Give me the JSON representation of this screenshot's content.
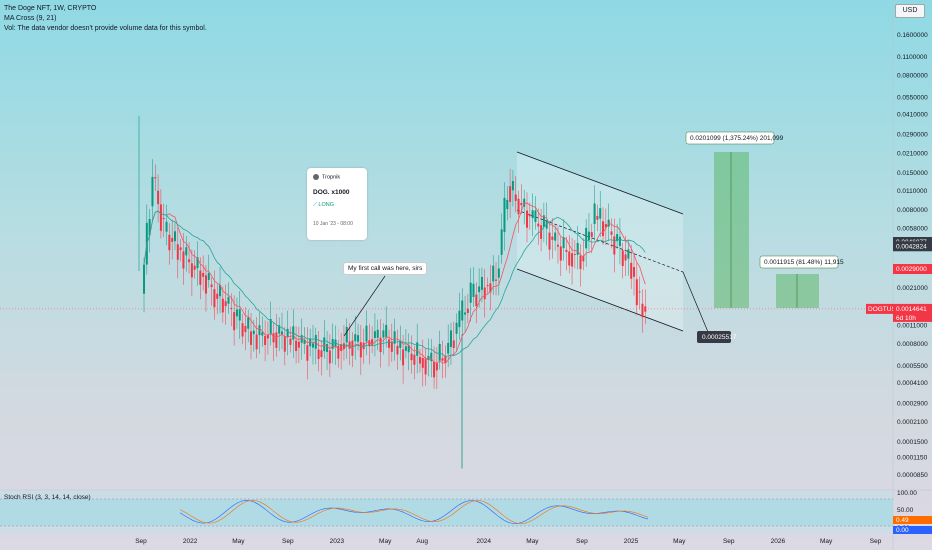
{
  "legend": {
    "symbol_line": "The Doge NFT, 1W, CRYPTO",
    "ma_line": "MA Cross (9, 21)",
    "vol_line": "Vol: The data vendor doesn't provide volume data for this symbol."
  },
  "currency_button": "USD",
  "price_axis": [
    "0.1600000",
    "0.1100000",
    "0.0800000",
    "0.0550000",
    "0.0410000",
    "0.0290000",
    "0.0210000",
    "0.0150000",
    "0.0110000",
    "0.0080000",
    "0.0058000",
    "0.0046077",
    "0.0042824",
    "0.0029000",
    "0.0021000",
    "0.0014641",
    "0.0011000",
    "0.0008000",
    "0.0005500",
    "0.0004100",
    "0.0002900",
    "0.0002100",
    "0.0001500",
    "0.0001150",
    "0.0000850"
  ],
  "price_tags": {
    "ma_fast": "0.0046077",
    "ma_slow": "0.0042824",
    "red_line": "0.0029000",
    "current_price": "0.0014641",
    "current_symbol": "DOGTUSD",
    "countdown": "6d 10h"
  },
  "time_axis": [
    "Sep",
    "2022",
    "May",
    "Sep",
    "2023",
    "May",
    "Aug",
    "2024",
    "May",
    "Sep",
    "2025",
    "May",
    "Sep",
    "2026",
    "May",
    "Sep"
  ],
  "annotations": {
    "first_call": "My first call was here, sirs",
    "target_1": "0.0201099 (1,375.24%) 201,099",
    "target_2": "0.0011915 (81.48%) 11,915",
    "projection": "0.00025517"
  },
  "idea": {
    "author": "Tropnik",
    "symbol": "DOG. x1000",
    "direction": "LONG",
    "date": "10 Jan '23 - 08:00"
  },
  "stoch": {
    "title": "Stoch RSI (3, 3, 14, 14, close)",
    "axis": [
      "100.00",
      "50.00",
      "0.00"
    ],
    "k_value": "0.49",
    "d_value": "0.00"
  },
  "colors": {
    "up": "#089981",
    "down": "#f23645",
    "ma_fast": "#f7525f",
    "ma_slow": "#26a69a",
    "target_box": "#4caf50",
    "tag_dark": "#363a45",
    "tag_red": "#f23645",
    "stoch_k": "#2962ff",
    "stoch_d": "#ff6d00"
  },
  "chart_data": {
    "type": "candlestick",
    "timeframe": "1W",
    "scale": "log",
    "ylim": [
      8.5e-05,
      0.16
    ],
    "x_range": [
      "2021-09",
      "2026-09"
    ],
    "series": [
      {
        "name": "price",
        "points": [
          [
            "2021-09-06",
            0.0019
          ],
          [
            "2021-10-04",
            0.014
          ],
          [
            "2021-11-01",
            0.0055
          ],
          [
            "2021-12-06",
            0.0042
          ],
          [
            "2022-01-03",
            0.0032
          ],
          [
            "2022-02-07",
            0.0026
          ],
          [
            "2022-03-07",
            0.0019
          ],
          [
            "2022-04-04",
            0.0016
          ],
          [
            "2022-05-02",
            0.0012
          ],
          [
            "2022-06-06",
            0.00095
          ],
          [
            "2022-07-04",
            0.00092
          ],
          [
            "2022-08-01",
            0.00098
          ],
          [
            "2022-09-05",
            0.00088
          ],
          [
            "2022-10-03",
            0.00082
          ],
          [
            "2022-11-07",
            0.00074
          ],
          [
            "2022-12-05",
            0.0007
          ],
          [
            "2023-01-09",
            0.0008
          ],
          [
            "2023-02-06",
            0.00085
          ],
          [
            "2023-03-06",
            0.00082
          ],
          [
            "2023-04-03",
            0.00089
          ],
          [
            "2023-05-01",
            0.0009
          ],
          [
            "2023-06-05",
            0.00075
          ],
          [
            "2023-07-03",
            0.00068
          ],
          [
            "2023-08-07",
            0.00062
          ],
          [
            "2023-09-04",
            0.00058
          ],
          [
            "2023-10-02",
            0.00068
          ],
          [
            "2023-11-06",
            0.0012
          ],
          [
            "2023-12-04",
            0.0018
          ],
          [
            "2024-01-08",
            0.0022
          ],
          [
            "2024-02-05",
            0.0025
          ],
          [
            "2024-03-04",
            0.012
          ],
          [
            "2024-04-01",
            0.009
          ],
          [
            "2024-05-06",
            0.0065
          ],
          [
            "2024-06-03",
            0.0058
          ],
          [
            "2024-07-01",
            0.0044
          ],
          [
            "2024-08-05",
            0.0038
          ],
          [
            "2024-09-02",
            0.0036
          ],
          [
            "2024-10-07",
            0.0072
          ],
          [
            "2024-11-04",
            0.006
          ],
          [
            "2024-12-02",
            0.0043
          ],
          [
            "2025-01-06",
            0.003
          ],
          [
            "2025-01-27",
            0.0016
          ],
          [
            "2025-02-10",
            0.0014641
          ]
        ]
      }
    ]
  }
}
